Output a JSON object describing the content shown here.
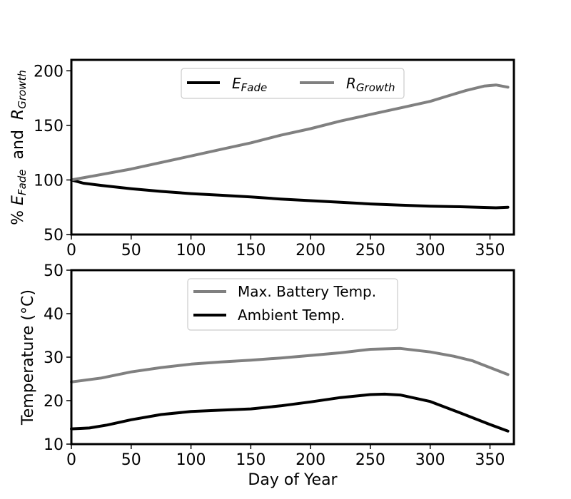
{
  "chart_data": [
    {
      "type": "line",
      "title": "",
      "xlabel": "",
      "ylabel": {
        "prefix": "% ",
        "e": "E",
        "e_sub": "Fade",
        "mid": "  and  ",
        "r": "R",
        "r_sub": "Growth"
      },
      "xlim": [
        0,
        370
      ],
      "ylim": [
        50,
        210
      ],
      "xticks": [
        0,
        50,
        100,
        150,
        200,
        250,
        300,
        350
      ],
      "yticks": [
        50,
        100,
        150,
        200
      ],
      "grid": false,
      "legend_position": "top-center",
      "series": [
        {
          "name": "E_Fade",
          "legend_main": "E",
          "legend_sub": "Fade",
          "color": "#000000",
          "x": [
            0,
            10,
            25,
            50,
            75,
            100,
            125,
            150,
            175,
            200,
            225,
            250,
            275,
            300,
            325,
            340,
            355,
            365
          ],
          "y": [
            100,
            97,
            95,
            92,
            89.5,
            87.5,
            86,
            84.5,
            82.5,
            81,
            79.5,
            78,
            77,
            76,
            75.5,
            75,
            74.5,
            75
          ]
        },
        {
          "name": "R_Growth",
          "legend_main": "R",
          "legend_sub": "Growth",
          "color": "#808080",
          "x": [
            0,
            25,
            50,
            75,
            100,
            125,
            150,
            175,
            200,
            225,
            250,
            275,
            300,
            315,
            330,
            345,
            355,
            365
          ],
          "y": [
            100,
            105,
            110,
            116,
            122,
            128,
            134,
            141,
            147,
            154,
            160,
            166,
            172,
            177,
            182,
            186,
            187,
            185
          ]
        }
      ]
    },
    {
      "type": "line",
      "title": "",
      "xlabel": "Day of Year",
      "ylabel": "Temperature (°C)",
      "xlim": [
        0,
        370
      ],
      "ylim": [
        10,
        50
      ],
      "xticks": [
        0,
        50,
        100,
        150,
        200,
        250,
        300,
        350
      ],
      "yticks": [
        10,
        20,
        30,
        40,
        50
      ],
      "grid": false,
      "legend_position": "top-center",
      "series": [
        {
          "name": "Max. Battery Temp.",
          "color": "#808080",
          "x": [
            0,
            25,
            50,
            75,
            100,
            125,
            150,
            175,
            200,
            225,
            250,
            275,
            300,
            320,
            335,
            350,
            365
          ],
          "y": [
            24.3,
            25.2,
            26.6,
            27.6,
            28.4,
            28.9,
            29.3,
            29.8,
            30.4,
            31,
            31.8,
            32,
            31.2,
            30.2,
            29.2,
            27.6,
            26
          ]
        },
        {
          "name": "Ambient Temp.",
          "color": "#000000",
          "x": [
            0,
            15,
            30,
            50,
            75,
            100,
            125,
            150,
            175,
            200,
            225,
            250,
            262,
            275,
            300,
            325,
            350,
            365
          ],
          "y": [
            13.5,
            13.7,
            14.4,
            15.6,
            16.8,
            17.5,
            17.8,
            18.1,
            18.8,
            19.7,
            20.7,
            21.4,
            21.5,
            21.3,
            19.8,
            17.2,
            14.5,
            13
          ]
        }
      ]
    }
  ]
}
